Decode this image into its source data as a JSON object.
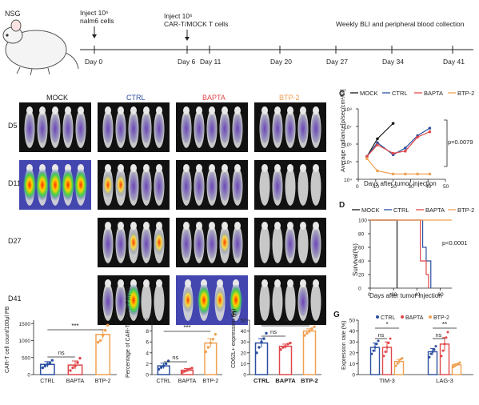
{
  "colors": {
    "mock": "#1a1a1a",
    "ctrl": "#2c4fa0",
    "bapta": "#e0484a",
    "btp": "#f0a050"
  },
  "timeline": {
    "mouse_label": "NSG",
    "event1": "Inject 10⁶",
    "event1b": "nalm6 cells",
    "event2": "Inject 10⁶",
    "event2b": "CAR-T/MOCK T cells",
    "event3": "Weekly BLI and peripheral blood collection",
    "days": [
      "Day 0",
      "Day 6",
      "Day 11",
      "Day 20",
      "Day 27",
      "Day 34",
      "Day 41"
    ]
  },
  "bli": {
    "groups": [
      "MOCK",
      "CTRL",
      "BAPTA",
      "BTP-2"
    ],
    "rows": [
      "D5",
      "D11",
      "D27",
      "D41"
    ]
  },
  "panelC": {
    "letter": "C",
    "legend": [
      "MOCK",
      "CTRL",
      "BAPTA",
      "BTP-2"
    ],
    "ylabel": "Average radiance[p/sec/cm²/sr]",
    "xlabel": "Days after tumor injection",
    "yticks": [
      "10⁸",
      "10⁷",
      "10⁶",
      "10⁵",
      "10⁴"
    ],
    "xticks": [
      "0",
      "10",
      "20",
      "30",
      "40",
      "50"
    ],
    "pvalue": "p=0.0079"
  },
  "panelD": {
    "letter": "D",
    "legend": [
      "MOCK",
      "CTRL",
      "BAPTA",
      "BTP-2"
    ],
    "ylabel": "Survival(%)",
    "xlabel": "Days after tumor injection",
    "yticks": [
      "100",
      "80",
      "60",
      "40",
      "20",
      "0"
    ],
    "xticks": [
      "0",
      "20",
      "40",
      "60"
    ],
    "pvalue": "p<0.0001"
  },
  "panelE1": {
    "ylabel": "CAR-T cell count/100μl PB",
    "yticks": [
      "1500",
      "1000",
      "500",
      "0"
    ],
    "categories": [
      "CTRL",
      "BAPTA",
      "BTP-2"
    ],
    "sig": [
      "ns",
      "***"
    ]
  },
  "panelE2": {
    "ylabel": "Percentage of CAR-T cells in PB(%)",
    "yticks": [
      "10",
      "8",
      "6",
      "4",
      "2",
      "0"
    ],
    "categories": [
      "CTRL",
      "BAPTA",
      "BTP-2"
    ],
    "sig": [
      "ns",
      "***"
    ]
  },
  "panelF": {
    "letter": "F",
    "ylabel": "CD62L+ expression (%)",
    "yticks": [
      "50",
      "40",
      "30",
      "20",
      "10",
      "0"
    ],
    "categories": [
      "CTRL",
      "BAPTA",
      "BTP-2"
    ],
    "sig": [
      "ns",
      "**"
    ]
  },
  "panelG": {
    "letter": "G",
    "legend": [
      "CTRL",
      "BAPTA",
      "BTP-2"
    ],
    "ylabel": "Expression rate (%)",
    "yticks": [
      "50",
      "40",
      "30",
      "20",
      "10",
      "0"
    ],
    "categories": [
      "TIM-3",
      "LAG-3"
    ],
    "sig": [
      "*",
      "ns",
      "**",
      "ns"
    ]
  },
  "chart_data": [
    {
      "type": "line",
      "panel": "C",
      "xlabel": "Days after tumor injection",
      "ylabel": "Average radiance[p/sec/cm²/sr]",
      "xlim": [
        0,
        50
      ],
      "ylog": true,
      "series": [
        {
          "name": "MOCK",
          "x": [
            5,
            11,
            20
          ],
          "y": [
            200000,
            2000000,
            15000000
          ]
        },
        {
          "name": "CTRL",
          "x": [
            5,
            11,
            20,
            27,
            34,
            41
          ],
          "y": [
            200000,
            1200000,
            250000,
            600000,
            3000000,
            8000000
          ]
        },
        {
          "name": "BAPTA",
          "x": [
            5,
            11,
            20,
            27,
            34,
            41
          ],
          "y": [
            200000,
            900000,
            300000,
            400000,
            2500000,
            5000000
          ]
        },
        {
          "name": "BTP-2",
          "x": [
            5,
            11,
            20,
            27,
            34,
            41
          ],
          "y": [
            150000,
            30000,
            20000,
            20000,
            20000,
            20000
          ]
        }
      ]
    },
    {
      "type": "line",
      "panel": "D",
      "xlabel": "Days after tumor injection",
      "ylabel": "Survival(%)",
      "xlim": [
        0,
        70
      ],
      "ylim": [
        0,
        100
      ],
      "series": [
        {
          "name": "MOCK",
          "x": [
            0,
            23,
            23
          ],
          "y": [
            100,
            100,
            0
          ]
        },
        {
          "name": "CTRL",
          "x": [
            0,
            45,
            45,
            48,
            48,
            52,
            52
          ],
          "y": [
            100,
            100,
            60,
            60,
            40,
            40,
            0
          ]
        },
        {
          "name": "BAPTA",
          "x": [
            0,
            43,
            43,
            48,
            48,
            50,
            50
          ],
          "y": [
            100,
            100,
            40,
            40,
            20,
            20,
            0
          ]
        },
        {
          "name": "BTP-2",
          "x": [
            0,
            70
          ],
          "y": [
            100,
            100
          ]
        }
      ]
    },
    {
      "type": "bar",
      "panel": "E1",
      "categories": [
        "CTRL",
        "BAPTA",
        "BTP-2"
      ],
      "values": [
        300,
        280,
        1180
      ],
      "errors": [
        80,
        120,
        140
      ],
      "points": [
        [
          200,
          250,
          300,
          350,
          420
        ],
        [
          120,
          200,
          250,
          350,
          480
        ],
        [
          950,
          1000,
          1150,
          1300,
          1450
        ]
      ],
      "ylabel": "CAR-T cell count/100μl PB",
      "ylim": [
        0,
        1600
      ]
    },
    {
      "type": "bar",
      "panel": "E2",
      "categories": [
        "CTRL",
        "BAPTA",
        "BTP-2"
      ],
      "values": [
        1.6,
        0.8,
        5.8
      ],
      "errors": [
        0.5,
        0.3,
        0.8
      ],
      "points": [
        [
          1.0,
          1.3,
          1.6,
          2.0,
          2.5
        ],
        [
          0.4,
          0.6,
          0.8,
          1.0,
          1.2
        ],
        [
          4.2,
          5.0,
          5.8,
          6.5,
          7.4
        ]
      ],
      "ylabel": "Percentage of CAR-T cells in PB(%)",
      "ylim": [
        0,
        10
      ]
    },
    {
      "type": "bar",
      "panel": "F",
      "categories": [
        "CTRL",
        "BAPTA",
        "BTP-2"
      ],
      "values": [
        29,
        26,
        40
      ],
      "errors": [
        4,
        2,
        2
      ],
      "points": [
        [
          20,
          25,
          30,
          33,
          38
        ],
        [
          23,
          25,
          26,
          28,
          29
        ],
        [
          36,
          38,
          40,
          42,
          44
        ]
      ],
      "ylabel": "CD62L+ expression (%)",
      "ylim": [
        0,
        50
      ]
    },
    {
      "type": "bar",
      "panel": "G",
      "categories": [
        "TIM-3",
        "LAG-3"
      ],
      "series": [
        {
          "name": "CTRL",
          "values": [
            25,
            21
          ],
          "errors": [
            4,
            3
          ],
          "points": [
            [
              19,
              22,
              25,
              28,
              31
            ],
            [
              16,
              19,
              21,
              23,
              26
            ]
          ]
        },
        {
          "name": "BAPTA",
          "values": [
            25,
            28
          ],
          "errors": [
            5,
            6
          ],
          "points": [
            [
              17,
              21,
              25,
              29,
              33
            ],
            [
              17,
              22,
              28,
              34,
              39
            ]
          ]
        },
        {
          "name": "BTP-2",
          "values": [
            12,
            9
          ],
          "errors": [
            2,
            1
          ],
          "points": [
            [
              8,
              10,
              12,
              14,
              15
            ],
            [
              7,
              8,
              9,
              10,
              11
            ]
          ]
        }
      ],
      "ylabel": "Expression rate (%)",
      "ylim": [
        0,
        50
      ]
    }
  ]
}
